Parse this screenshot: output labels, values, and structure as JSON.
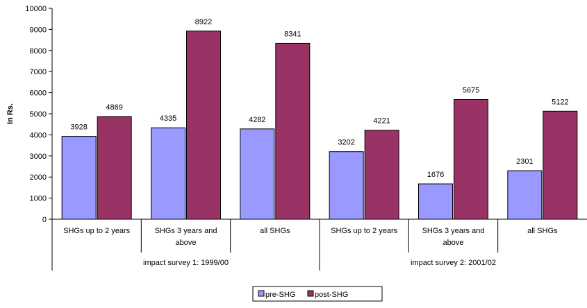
{
  "chart_data": {
    "type": "bar",
    "title": "",
    "ylabel": "In Rs.",
    "xlabel": "",
    "ylim": [
      0,
      10000
    ],
    "ytick_step": 1000,
    "grid": false,
    "legend_position": "bottom",
    "categories": [
      "SHGs  up to 2 years",
      "SHGs 3 years and above",
      "all SHGs",
      "SHGs up to 2 years",
      "SHGs 3 years and above",
      "all SHGs"
    ],
    "groups": [
      {
        "label": "impact survey 1: 1999/00",
        "categories": [
          0,
          1,
          2
        ]
      },
      {
        "label": "impact survey 2: 2001/02",
        "categories": [
          3,
          4,
          5
        ]
      }
    ],
    "series": [
      {
        "name": "pre-SHG",
        "color": "#9999ff",
        "values": [
          3928,
          4335,
          4282,
          3202,
          1676,
          2301
        ]
      },
      {
        "name": "post-SHG",
        "color": "#993366",
        "values": [
          4869,
          8922,
          8341,
          4221,
          5675,
          5122
        ]
      }
    ]
  }
}
